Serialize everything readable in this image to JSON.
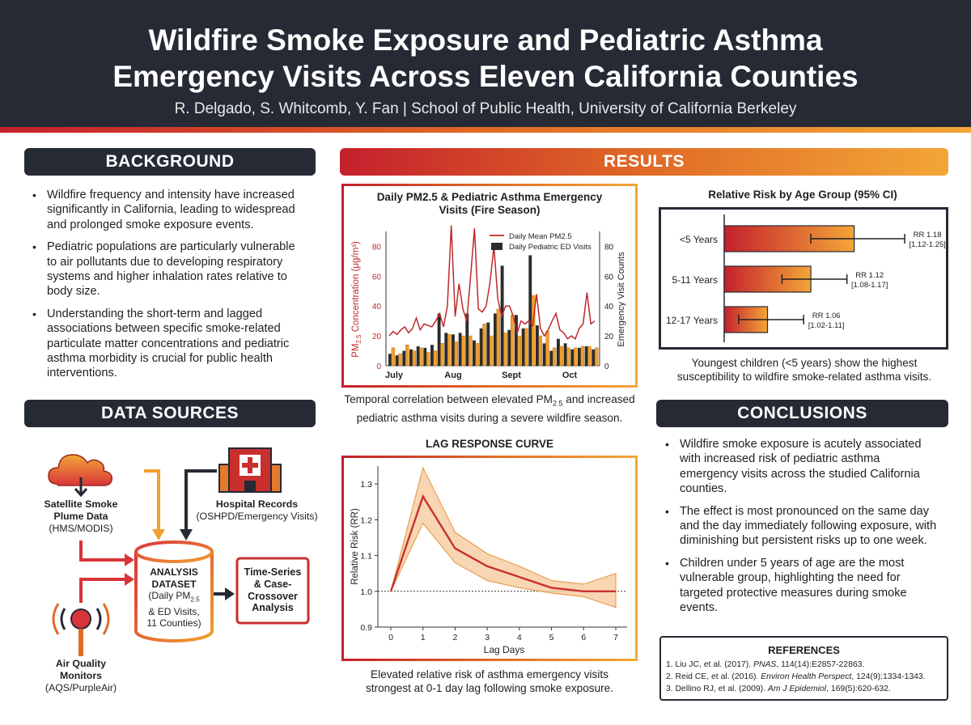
{
  "header": {
    "title_line1": "Wildfire Smoke Exposure and Pediatric Asthma",
    "title_line2": "Emergency Visits Across Eleven California Counties",
    "authors": "R. Delgado, S. Whitcomb, Y. Fan | School of Public Health, University of California Berkeley"
  },
  "background": {
    "heading": "BACKGROUND",
    "bullets": [
      "Wildfire frequency and intensity have increased significantly in California, leading to widespread and prolonged smoke exposure events.",
      "Pediatric populations are particularly vulnerable to air pollutants due to developing respiratory systems and higher inhalation rates relative to body size.",
      "Understanding the short-term and lagged associations between specific smoke-related particulate matter concentrations and pediatric asthma morbidity is crucial for public health interventions."
    ]
  },
  "data_sources": {
    "heading": "DATA SOURCES",
    "satellite": {
      "name_line1": "Satellite Smoke",
      "name_line2": "Plume Data",
      "sub": "(HMS/MODIS)"
    },
    "hospital": {
      "name": "Hospital Records",
      "sub": "(OSHPD/Emergency Visits)"
    },
    "air": {
      "name_line1": "Air Quality",
      "name_line2": "Monitors",
      "sub": "(AQS/PurpleAir)"
    },
    "dataset": {
      "title_line1": "ANALYSIS",
      "title_line2": "DATASET",
      "line1_pre": "(Daily PM",
      "line1_sub": "2.5",
      "line2": "& ED Visits,",
      "line3": "11 Counties)"
    },
    "analysis": {
      "line1": "Time-Series",
      "line2": "& Case-",
      "line3": "Crossover",
      "line4": "Analysis"
    },
    "colors": {
      "dark": "#262a35",
      "red": "#d8343a",
      "orange": "#f0a030"
    }
  },
  "results": {
    "heading": "RESULTS"
  },
  "chart_data": [
    {
      "type": "bar+line",
      "title_line1": "Daily PM2.5 & Pediatric Asthma Emergency",
      "title_line2": "Visits (Fire Season)",
      "ylabel_left_pre": "PM",
      "ylabel_left_sub": "2.5",
      "ylabel_left_post": " Concentration (μg/m³)",
      "ylabel_right": "Emergency Visit Counts",
      "ylim_left": [
        0,
        90
      ],
      "ylim_right": [
        0,
        90
      ],
      "yticks_left": [
        "0",
        "20",
        "40",
        "60",
        "80"
      ],
      "yticks_right": [
        "0",
        "20",
        "40",
        "60",
        "80"
      ],
      "x_tick_labels": [
        "July",
        "Aug",
        "Sept",
        "Oct"
      ],
      "legend": [
        {
          "name": "Daily Mean PM2.5",
          "color": "#c0282a"
        },
        {
          "name": "Daily Pediatric ED Visits",
          "color": "#2c2c2c"
        }
      ],
      "pm25": [
        20,
        23,
        21,
        24,
        26,
        22,
        25,
        32,
        24,
        28,
        27,
        26,
        30,
        35,
        26,
        40,
        94,
        33,
        55,
        38,
        30,
        60,
        92,
        38,
        36,
        40,
        56,
        80,
        45,
        33,
        40,
        40,
        33,
        22,
        30,
        28,
        30,
        27,
        48,
        25,
        20,
        24,
        30,
        35,
        24,
        22,
        18,
        20,
        18,
        25,
        28,
        49,
        28,
        30
      ],
      "ed_visits_dark": [
        8,
        7,
        10,
        11,
        13,
        12,
        14,
        35,
        22,
        21,
        22,
        35,
        17,
        25,
        29,
        35,
        67,
        24,
        34,
        25,
        74,
        27,
        15,
        10,
        18,
        15,
        11,
        12,
        13,
        11
      ],
      "ed_visits_orange": [
        12,
        8,
        14,
        10,
        12,
        9,
        10,
        15,
        21,
        16,
        20,
        20,
        15,
        28,
        20,
        38,
        22,
        34,
        20,
        25,
        47,
        20,
        23,
        12,
        13,
        12,
        12,
        13,
        13,
        12
      ],
      "caption_pre": "Temporal correlation between elevated PM",
      "caption_sub": "2.5",
      "caption_post": " and increased pediatric asthma visits during a severe wildfire season."
    },
    {
      "type": "bar",
      "title": "Relative Risk by Age Group (95% CI)",
      "categories": [
        "<5 Years",
        "5-11 Years",
        "12-17 Years"
      ],
      "values": [
        1.18,
        1.12,
        1.06
      ],
      "ci_low": [
        1.12,
        1.08,
        1.02
      ],
      "ci_high": [
        1.25,
        1.17,
        1.11
      ],
      "labels_rr": [
        "RR 1.18",
        "RR 1.12",
        "RR 1.06"
      ],
      "labels_ci": [
        "[1.12-1.25]",
        "[1.08-1.17]",
        "[1.02-1.11]"
      ],
      "caption": "Youngest children (<5 years) show the highest susceptibility to wildfire smoke-related asthma visits."
    },
    {
      "type": "line",
      "title": "LAG RESPONSE CURVE",
      "xlabel": "Lag Days",
      "ylabel": "Relative Risk (RR)",
      "x": [
        0,
        1,
        2,
        3,
        4,
        5,
        6,
        7
      ],
      "y": [
        1.0,
        1.265,
        1.12,
        1.07,
        1.04,
        1.01,
        1.0,
        1.0
      ],
      "ci_upper": [
        1.0,
        1.345,
        1.165,
        1.105,
        1.07,
        1.03,
        1.02,
        1.05
      ],
      "ci_lower": [
        1.0,
        1.19,
        1.08,
        1.03,
        1.01,
        0.995,
        0.985,
        0.955
      ],
      "xlim": [
        0,
        7
      ],
      "ylim": [
        0.9,
        1.35
      ],
      "yticks": [
        "0.9",
        "1.0",
        "1.1",
        "1.2",
        "1.3"
      ],
      "xticks": [
        "0",
        "1",
        "2",
        "3",
        "4",
        "5",
        "6",
        "7"
      ],
      "reference_line": 1.0,
      "caption": "Elevated relative risk of asthma emergency visits strongest at 0-1 day lag following smoke exposure."
    }
  ],
  "conclusions": {
    "heading": "CONCLUSIONS",
    "bullets": [
      "Wildfire smoke exposure is acutely associated with increased risk of pediatric asthma emergency visits across the studied California counties.",
      "The effect is most pronounced on the same day and the day immediately following exposure, with diminishing but persistent risks up to one week.",
      "Children under 5 years of age are the most vulnerable group, highlighting the need for targeted protective measures during smoke events."
    ]
  },
  "references": {
    "heading": "REFERENCES",
    "items": [
      {
        "pre": "1. Liu JC, et al. (2017). ",
        "journal": "PNAS",
        "post": ", 114(14):E2857-22863."
      },
      {
        "pre": "2. Reid CE, et al. (2016). ",
        "journal": "Environ Health Perspect",
        "post": ", 124(9):1334-1343."
      },
      {
        "pre": "3. Dellino RJ, et al. (2009). ",
        "journal": "Am J Epidemiol",
        "post": ", 169(5):620-632."
      }
    ]
  }
}
